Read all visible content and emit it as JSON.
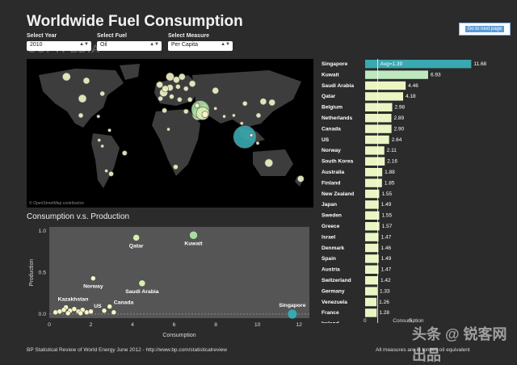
{
  "title": "Worldwide Fuel Consumption",
  "next_button": "Go to next page",
  "filters": {
    "year": {
      "label": "Select Year",
      "value": "2010"
    },
    "fuel": {
      "label": "Select Fuel",
      "value": "Oil"
    },
    "measure": {
      "label": "Select Measure",
      "value": "Per Capita"
    }
  },
  "watermark": "SOFTPEDIA",
  "map": {
    "credit": "© OpenStreetMap contributors"
  },
  "scatter_title": "Consumption v.s. Production",
  "footer_left": "BP Statistical Review of World Energy June 2012 - http://www.bp.com/statisticalreview",
  "footer_right": "All measures are in tonnes oil equivalent",
  "corner_watermark": "头条 @ 锐客网 出品",
  "chart_data": [
    {
      "type": "bar",
      "categories": [
        "Singapore",
        "Kuwait",
        "Saudi Arabia",
        "Qatar",
        "Belgium",
        "Netherlands",
        "Canada",
        "US",
        "Norway",
        "South Korea",
        "Australia",
        "Finland",
        "New Zealand",
        "Japan",
        "Sweden",
        "Greece",
        "Israel",
        "Denmark",
        "Spain",
        "Austria",
        "Switzerland",
        "Germany",
        "Venezuela",
        "France",
        "Ireland"
      ],
      "values": [
        11.68,
        6.93,
        4.46,
        4.18,
        2.98,
        2.89,
        2.9,
        2.64,
        2.11,
        2.16,
        1.88,
        1.85,
        1.55,
        1.49,
        1.55,
        1.57,
        1.47,
        1.46,
        1.49,
        1.47,
        1.42,
        1.33,
        1.26,
        1.28,
        null
      ],
      "value_labels": [
        "11.68",
        "6.93",
        "4.46",
        "4.18",
        "2.98",
        "2.89",
        "2.90",
        "2.64",
        "2.11",
        "2.16",
        "1.88",
        "1.85",
        "1.55",
        "1.49",
        "1.55",
        "1.57",
        "1.47",
        "1.46",
        "1.49",
        "1.47",
        "1.42",
        "1.33",
        "1.26",
        "1.28",
        ""
      ],
      "reference_line": {
        "label": "Avg=1.39",
        "value": 1.39
      },
      "x_ticks": [
        "0",
        "5"
      ],
      "xlabel": "Consumption",
      "colors": {
        "highlight": "#3aa8b0",
        "second": "#bfe8c0",
        "bar": "#eaf5c4"
      }
    },
    {
      "type": "scatter",
      "title": "Consumption v.s. Production",
      "xlabel": "Consumption",
      "ylabel": "Production",
      "xlim": [
        0,
        12.5
      ],
      "ylim": [
        -0.05,
        1.05
      ],
      "x_ticks": [
        "0",
        "2",
        "4",
        "6",
        "8",
        "10",
        "12"
      ],
      "y_ticks": [
        "0.0",
        "0.5",
        "1.0"
      ],
      "points": [
        {
          "label": "Singapore",
          "x": 11.68,
          "y": 0.0
        },
        {
          "label": "Kuwait",
          "x": 6.93,
          "y": 0.95
        },
        {
          "label": "Qatar",
          "x": 4.18,
          "y": 0.92
        },
        {
          "label": "Saudi Arabia",
          "x": 4.46,
          "y": 0.37
        },
        {
          "label": "Norway",
          "x": 2.11,
          "y": 0.43
        },
        {
          "label": "Kazakhstan",
          "x": 0.8,
          "y": 0.08
        },
        {
          "label": "US",
          "x": 2.64,
          "y": 0.04
        },
        {
          "label": "Canada",
          "x": 2.9,
          "y": 0.09
        },
        {
          "label": "",
          "x": 0.3,
          "y": 0.02
        },
        {
          "label": "",
          "x": 0.5,
          "y": 0.03
        },
        {
          "label": "",
          "x": 0.7,
          "y": 0.05
        },
        {
          "label": "",
          "x": 1.0,
          "y": 0.04
        },
        {
          "label": "",
          "x": 1.2,
          "y": 0.06
        },
        {
          "label": "",
          "x": 1.4,
          "y": 0.03
        },
        {
          "label": "",
          "x": 1.6,
          "y": 0.05
        },
        {
          "label": "",
          "x": 1.8,
          "y": 0.02
        },
        {
          "label": "",
          "x": 2.0,
          "y": 0.03
        },
        {
          "label": "",
          "x": 1.5,
          "y": 0.01
        },
        {
          "label": "",
          "x": 0.9,
          "y": 0.01
        },
        {
          "label": "",
          "x": 3.1,
          "y": 0.02
        }
      ],
      "colors": {
        "highlight": "#3aa8b0",
        "high": "#a8dca0",
        "mid": "#d8eeb0",
        "low": "#f5f5c8"
      }
    }
  ],
  "map_points": [
    {
      "lon": -100,
      "lat": 40,
      "s": 5
    },
    {
      "lon": -95,
      "lat": 58,
      "s": 4
    },
    {
      "lon": -120,
      "lat": 62,
      "s": 5
    },
    {
      "lon": -75,
      "lat": 45,
      "s": 3
    },
    {
      "lon": -102,
      "lat": 23,
      "s": 3
    },
    {
      "lon": -66,
      "lat": 8,
      "s": 2
    },
    {
      "lon": -75,
      "lat": -8,
      "s": 2
    },
    {
      "lon": -70,
      "lat": -33,
      "s": 2
    },
    {
      "lon": -47,
      "lat": -15,
      "s": 3
    },
    {
      "lon": -64,
      "lat": -36,
      "s": 3
    },
    {
      "lon": -79,
      "lat": -2,
      "s": 2
    },
    {
      "lon": -80,
      "lat": 22,
      "s": 2
    },
    {
      "lon": -2,
      "lat": 40,
      "s": 3
    },
    {
      "lon": 2,
      "lat": 46,
      "s": 5
    },
    {
      "lon": 10,
      "lat": 51,
      "s": 4
    },
    {
      "lon": 4,
      "lat": 50,
      "s": 4
    },
    {
      "lon": -3,
      "lat": 54,
      "s": 4
    },
    {
      "lon": 12,
      "lat": 42,
      "s": 3
    },
    {
      "lon": 10,
      "lat": 62,
      "s": 5
    },
    {
      "lon": 25,
      "lat": 62,
      "s": 4
    },
    {
      "lon": 18,
      "lat": 59,
      "s": 4
    },
    {
      "lon": 20,
      "lat": 52,
      "s": 3
    },
    {
      "lon": 22,
      "lat": 39,
      "s": 3
    },
    {
      "lon": 35,
      "lat": 39,
      "s": 3
    },
    {
      "lon": 38,
      "lat": 55,
      "s": 4
    },
    {
      "lon": 30,
      "lat": 50,
      "s": 3
    },
    {
      "lon": 67,
      "lat": 48,
      "s": 4
    },
    {
      "lon": 53,
      "lat": 32,
      "s": 3
    },
    {
      "lon": 45,
      "lat": 24,
      "s": 7
    },
    {
      "lon": 48,
      "lat": 29,
      "s": 11
    },
    {
      "lon": 51,
      "lat": 25,
      "s": 8
    },
    {
      "lon": 54,
      "lat": 24,
      "s": 4
    },
    {
      "lon": 44,
      "lat": 33,
      "s": 3
    },
    {
      "lon": 3,
      "lat": 28,
      "s": 3
    },
    {
      "lon": 30,
      "lat": 27,
      "s": 3
    },
    {
      "lon": 17,
      "lat": -29,
      "s": 3
    },
    {
      "lon": 8,
      "lat": 9,
      "s": 2
    },
    {
      "lon": 78,
      "lat": 22,
      "s": 2
    },
    {
      "lon": 104,
      "lat": 35,
      "s": 3
    },
    {
      "lon": 127,
      "lat": 37,
      "s": 4
    },
    {
      "lon": 138,
      "lat": 36,
      "s": 4
    },
    {
      "lon": 100,
      "lat": 15,
      "s": 2
    },
    {
      "lon": 103.8,
      "lat": 1.3,
      "s": 14
    },
    {
      "lon": 112,
      "lat": 3,
      "s": 2
    },
    {
      "lon": 120,
      "lat": -5,
      "s": 2
    },
    {
      "lon": 134,
      "lat": -25,
      "s": 5
    },
    {
      "lon": 174,
      "lat": -41,
      "s": 4
    },
    {
      "lon": 121,
      "lat": 23,
      "s": 3
    },
    {
      "lon": 67,
      "lat": 30,
      "s": 2
    },
    {
      "lon": 90,
      "lat": 23,
      "s": 2
    }
  ]
}
